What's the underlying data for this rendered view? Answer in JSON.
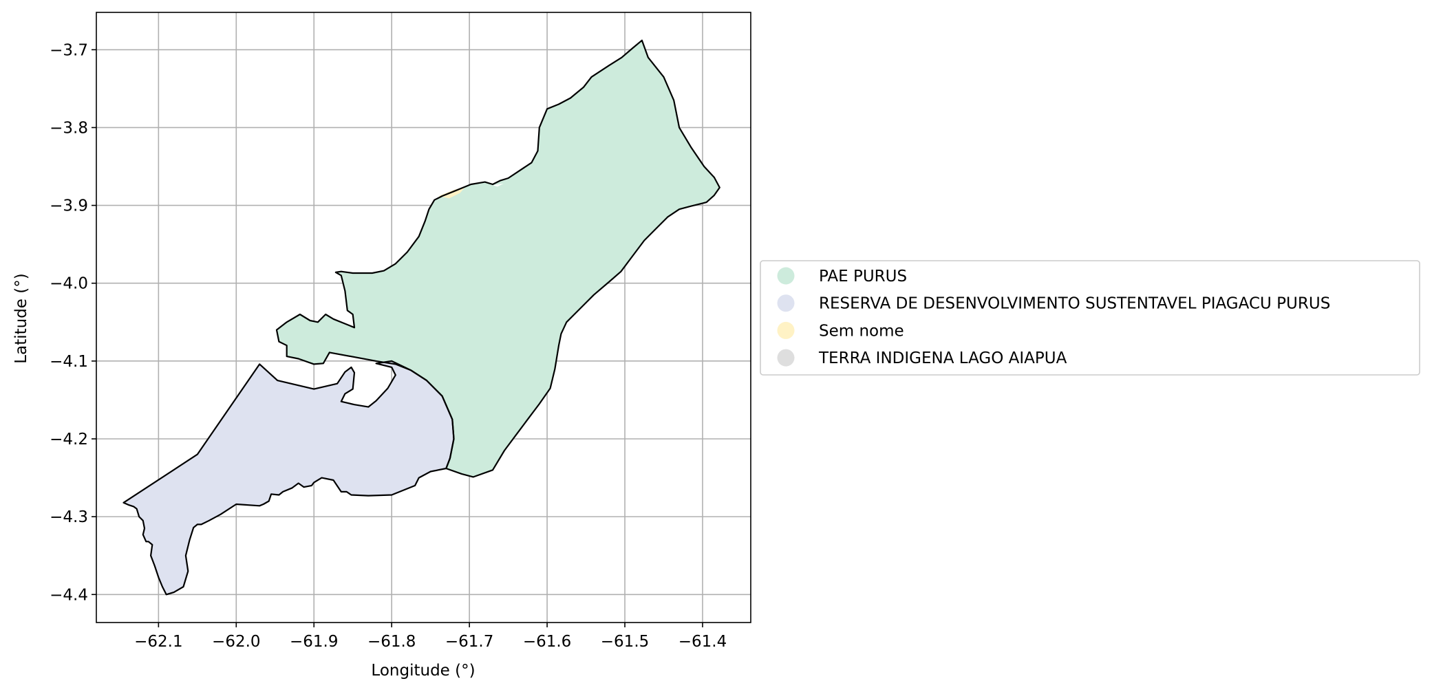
{
  "map": {
    "xlabel": "Longitude (°)",
    "ylabel": "Latitude (°)",
    "xlim": [
      -62.18,
      -61.338
    ],
    "ylim": [
      -4.436,
      -3.652
    ],
    "x_ticks": [
      -62.1,
      -62.0,
      -61.9,
      -61.8,
      -61.7,
      -61.6,
      -61.5,
      -61.4
    ],
    "y_ticks": [
      -3.7,
      -3.8,
      -3.9,
      -4.0,
      -4.1,
      -4.2,
      -4.3,
      -4.4
    ],
    "x_tick_labels": [
      "−62.1",
      "−62.0",
      "−61.9",
      "−61.8",
      "−61.7",
      "−61.6",
      "−61.5",
      "−61.4"
    ],
    "y_tick_labels": [
      "−3.7",
      "−3.8",
      "−3.9",
      "−4.0",
      "−4.1",
      "−4.2",
      "−4.3",
      "−4.4"
    ],
    "grid": true,
    "legend_placement": "right-center",
    "outline_color": "#000000",
    "grid_color": "#b0b0b0",
    "regions": [
      {
        "name": "PAE PURUS",
        "color": "#cdebdc",
        "coords": [
          [
            -61.478,
            -3.688
          ],
          [
            -61.47,
            -3.71
          ],
          [
            -61.45,
            -3.735
          ],
          [
            -61.437,
            -3.765
          ],
          [
            -61.43,
            -3.8
          ],
          [
            -61.415,
            -3.825
          ],
          [
            -61.398,
            -3.85
          ],
          [
            -61.385,
            -3.864
          ],
          [
            -61.378,
            -3.877
          ],
          [
            -61.385,
            -3.887
          ],
          [
            -61.395,
            -3.896
          ],
          [
            -61.415,
            -3.901
          ],
          [
            -61.43,
            -3.905
          ],
          [
            -61.445,
            -3.915
          ],
          [
            -61.46,
            -3.93
          ],
          [
            -61.475,
            -3.945
          ],
          [
            -61.49,
            -3.965
          ],
          [
            -61.505,
            -3.985
          ],
          [
            -61.52,
            -3.998
          ],
          [
            -61.54,
            -4.015
          ],
          [
            -61.55,
            -4.025
          ],
          [
            -61.565,
            -4.04
          ],
          [
            -61.575,
            -4.05
          ],
          [
            -61.582,
            -4.065
          ],
          [
            -61.585,
            -4.08
          ],
          [
            -61.59,
            -4.11
          ],
          [
            -61.596,
            -4.135
          ],
          [
            -61.61,
            -4.155
          ],
          [
            -61.625,
            -4.175
          ],
          [
            -61.64,
            -4.195
          ],
          [
            -61.655,
            -4.215
          ],
          [
            -61.67,
            -4.24
          ],
          [
            -61.695,
            -4.249
          ],
          [
            -61.71,
            -4.245
          ],
          [
            -61.73,
            -4.238
          ],
          [
            -61.725,
            -4.225
          ],
          [
            -61.72,
            -4.2
          ],
          [
            -61.722,
            -4.175
          ],
          [
            -61.735,
            -4.145
          ],
          [
            -61.755,
            -4.125
          ],
          [
            -61.775,
            -4.112
          ],
          [
            -61.795,
            -4.104
          ],
          [
            -61.82,
            -4.1
          ],
          [
            -61.88,
            -4.089
          ],
          [
            -61.888,
            -4.103
          ],
          [
            -61.9,
            -4.104
          ],
          [
            -61.92,
            -4.097
          ],
          [
            -61.935,
            -4.094
          ],
          [
            -61.935,
            -4.08
          ],
          [
            -61.945,
            -4.075
          ],
          [
            -61.948,
            -4.06
          ],
          [
            -61.935,
            -4.05
          ],
          [
            -61.918,
            -4.04
          ],
          [
            -61.905,
            -4.048
          ],
          [
            -61.895,
            -4.05
          ],
          [
            -61.885,
            -4.04
          ],
          [
            -61.875,
            -4.046
          ],
          [
            -61.86,
            -4.052
          ],
          [
            -61.848,
            -4.057
          ],
          [
            -61.85,
            -4.04
          ],
          [
            -61.857,
            -4.035
          ],
          [
            -61.86,
            -4.01
          ],
          [
            -61.865,
            -3.99
          ],
          [
            -61.872,
            -3.986
          ],
          [
            -61.865,
            -3.985
          ],
          [
            -61.85,
            -3.987
          ],
          [
            -61.825,
            -3.987
          ],
          [
            -61.81,
            -3.984
          ],
          [
            -61.795,
            -3.975
          ],
          [
            -61.78,
            -3.96
          ],
          [
            -61.765,
            -3.94
          ],
          [
            -61.757,
            -3.92
          ],
          [
            -61.752,
            -3.905
          ],
          [
            -61.745,
            -3.893
          ],
          [
            -61.735,
            -3.888
          ],
          [
            -61.72,
            -3.882
          ],
          [
            -61.708,
            -3.877
          ],
          [
            -61.698,
            -3.873
          ],
          [
            -61.68,
            -3.87
          ],
          [
            -61.67,
            -3.873
          ],
          [
            -61.66,
            -3.868
          ],
          [
            -61.65,
            -3.865
          ],
          [
            -61.635,
            -3.855
          ],
          [
            -61.62,
            -3.845
          ],
          [
            -61.612,
            -3.83
          ],
          [
            -61.61,
            -3.8
          ],
          [
            -61.6,
            -3.776
          ],
          [
            -61.585,
            -3.77
          ],
          [
            -61.57,
            -3.762
          ],
          [
            -61.553,
            -3.748
          ],
          [
            -61.543,
            -3.735
          ],
          [
            -61.52,
            -3.72
          ],
          [
            -61.504,
            -3.71
          ],
          [
            -61.49,
            -3.698
          ]
        ]
      },
      {
        "name": "RESERVA DE DESENVOLVIMENTO SUSTENTAVEL PIAGACU PURUS",
        "color": "#dee2f0",
        "coords": [
          [
            -61.97,
            -4.104
          ],
          [
            -61.947,
            -4.125
          ],
          [
            -61.9,
            -4.136
          ],
          [
            -61.87,
            -4.129
          ],
          [
            -61.86,
            -4.114
          ],
          [
            -61.852,
            -4.108
          ],
          [
            -61.848,
            -4.115
          ],
          [
            -61.85,
            -4.136
          ],
          [
            -61.86,
            -4.142
          ],
          [
            -61.865,
            -4.152
          ],
          [
            -61.848,
            -4.156
          ],
          [
            -61.83,
            -4.159
          ],
          [
            -61.82,
            -4.151
          ],
          [
            -61.805,
            -4.135
          ],
          [
            -61.795,
            -4.118
          ],
          [
            -61.8,
            -4.108
          ],
          [
            -61.82,
            -4.103
          ],
          [
            -61.8,
            -4.1
          ],
          [
            -61.775,
            -4.112
          ],
          [
            -61.755,
            -4.125
          ],
          [
            -61.735,
            -4.145
          ],
          [
            -61.722,
            -4.175
          ],
          [
            -61.72,
            -4.2
          ],
          [
            -61.725,
            -4.225
          ],
          [
            -61.73,
            -4.238
          ],
          [
            -61.75,
            -4.242
          ],
          [
            -61.765,
            -4.25
          ],
          [
            -61.77,
            -4.26
          ],
          [
            -61.8,
            -4.272
          ],
          [
            -61.83,
            -4.273
          ],
          [
            -61.852,
            -4.272
          ],
          [
            -61.858,
            -4.268
          ],
          [
            -61.865,
            -4.268
          ],
          [
            -61.875,
            -4.253
          ],
          [
            -61.89,
            -4.25
          ],
          [
            -61.9,
            -4.256
          ],
          [
            -61.903,
            -4.26
          ],
          [
            -61.913,
            -4.262
          ],
          [
            -61.92,
            -4.257
          ],
          [
            -61.928,
            -4.263
          ],
          [
            -61.94,
            -4.268
          ],
          [
            -61.945,
            -4.272
          ],
          [
            -61.955,
            -4.271
          ],
          [
            -61.958,
            -4.28
          ],
          [
            -61.965,
            -4.284
          ],
          [
            -61.97,
            -4.286
          ],
          [
            -62.0,
            -4.284
          ],
          [
            -62.02,
            -4.297
          ],
          [
            -62.035,
            -4.305
          ],
          [
            -62.045,
            -4.31
          ],
          [
            -62.05,
            -4.31
          ],
          [
            -62.055,
            -4.314
          ],
          [
            -62.06,
            -4.33
          ],
          [
            -62.065,
            -4.35
          ],
          [
            -62.062,
            -4.37
          ],
          [
            -62.068,
            -4.39
          ],
          [
            -62.08,
            -4.397
          ],
          [
            -62.09,
            -4.4
          ],
          [
            -62.095,
            -4.39
          ],
          [
            -62.1,
            -4.378
          ],
          [
            -62.105,
            -4.363
          ],
          [
            -62.11,
            -4.35
          ],
          [
            -62.108,
            -4.336
          ],
          [
            -62.113,
            -4.332
          ],
          [
            -62.116,
            -4.332
          ],
          [
            -62.12,
            -4.323
          ],
          [
            -62.118,
            -4.315
          ],
          [
            -62.12,
            -4.305
          ],
          [
            -62.125,
            -4.3
          ],
          [
            -62.128,
            -4.29
          ],
          [
            -62.132,
            -4.287
          ],
          [
            -62.138,
            -4.285
          ],
          [
            -62.145,
            -4.282
          ],
          [
            -62.05,
            -4.22
          ]
        ]
      }
    ],
    "minor_regions": [
      {
        "name": "Sem nome",
        "color": "#fff2c5",
        "coords": [
          [
            -61.74,
            -3.888
          ],
          [
            -61.72,
            -3.88
          ],
          [
            -61.705,
            -3.876
          ],
          [
            -61.712,
            -3.884
          ],
          [
            -61.726,
            -3.891
          ]
        ]
      },
      {
        "name": "Sem nome",
        "color": "#ffffff",
        "coords": [
          [
            -61.67,
            -3.874
          ],
          [
            -61.656,
            -3.872
          ],
          [
            -61.664,
            -3.876
          ]
        ]
      }
    ],
    "legend": [
      {
        "label": "PAE PURUS",
        "color": "#cdebdc"
      },
      {
        "label": "RESERVA DE DESENVOLVIMENTO SUSTENTAVEL PIAGACU PURUS",
        "color": "#dee2f0"
      },
      {
        "label": "Sem nome",
        "color": "#fff2c5"
      },
      {
        "label": "TERRA INDIGENA LAGO AIAPUA",
        "color": "#dedede"
      }
    ]
  }
}
